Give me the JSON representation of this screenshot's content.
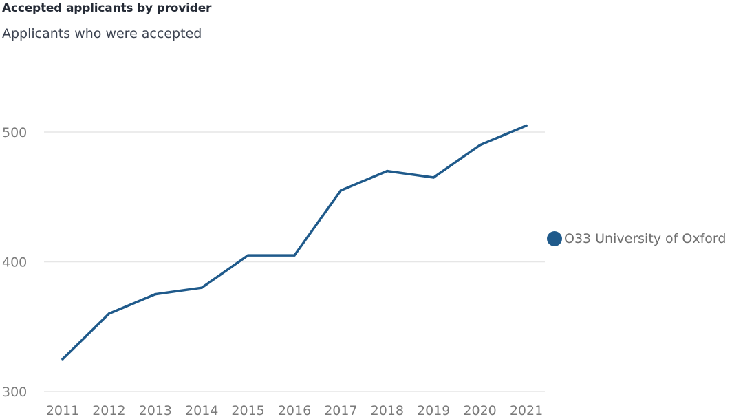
{
  "chart_data": {
    "type": "line",
    "title": "Accepted applicants  by provider",
    "subtitle": "Applicants who were accepted",
    "xlabel": "",
    "ylabel": "",
    "categories": [
      "2011",
      "2012",
      "2013",
      "2014",
      "2015",
      "2016",
      "2017",
      "2018",
      "2019",
      "2020",
      "2021"
    ],
    "series": [
      {
        "name": "O33 University of Oxford",
        "color": "#1f5a8b",
        "values": [
          325,
          360,
          375,
          380,
          405,
          405,
          455,
          470,
          465,
          490,
          505
        ]
      }
    ],
    "ylim": [
      300,
      500
    ],
    "yticks": [
      "300",
      "400",
      "500"
    ],
    "grid": true,
    "legend": "right"
  },
  "colors": {
    "gridline": "#e6e6e6",
    "tick_text": "#7a7a7a"
  }
}
